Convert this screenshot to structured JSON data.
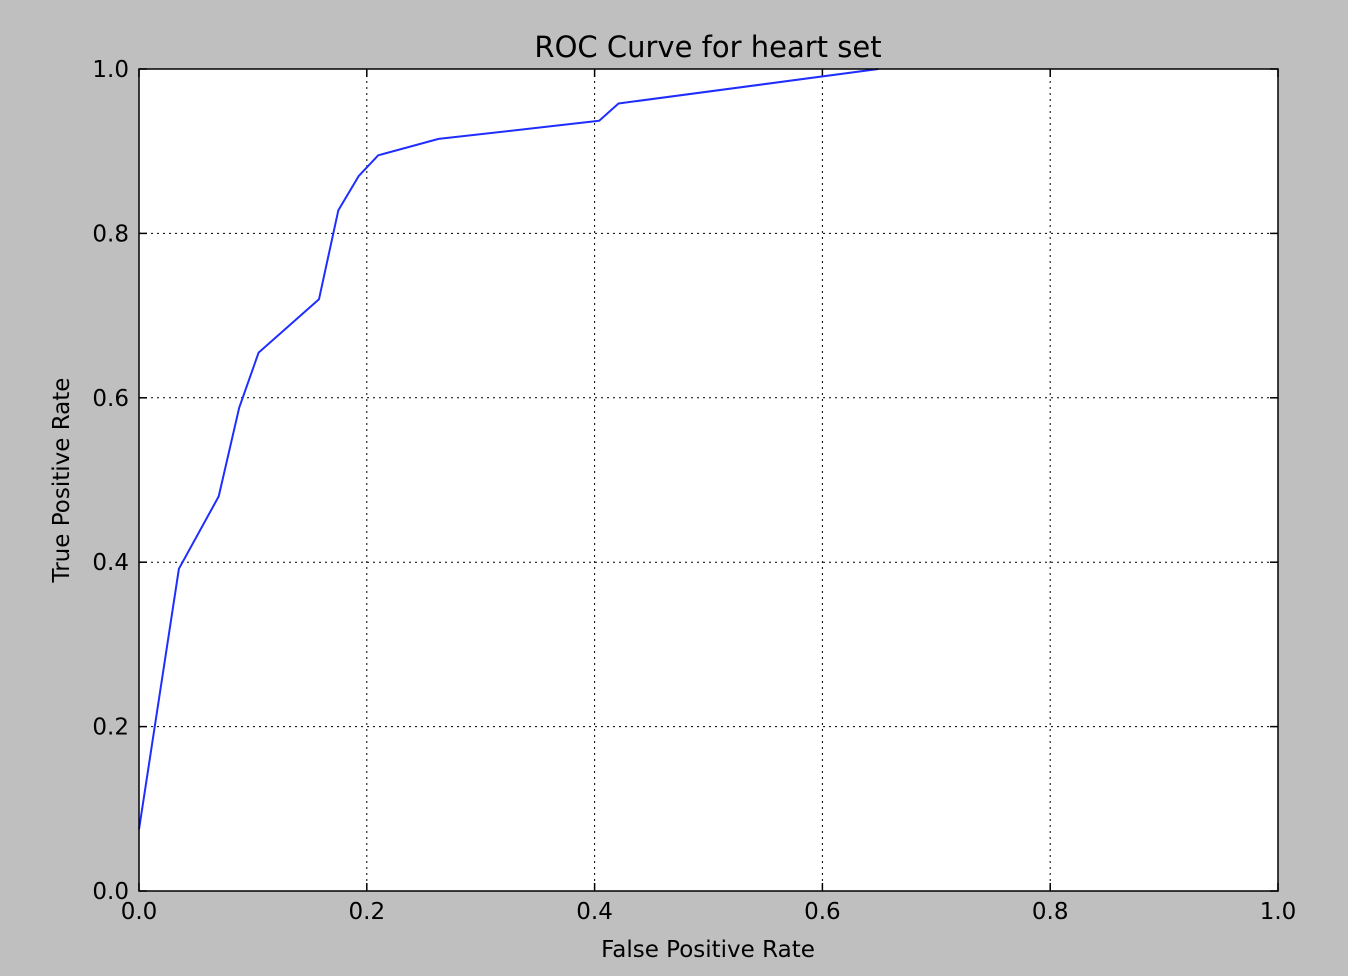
{
  "chart_data": {
    "type": "line",
    "title": "ROC Curve for heart set",
    "xlabel": "False Positive Rate",
    "ylabel": "True Positive Rate",
    "xlim": [
      0.0,
      1.0
    ],
    "ylim": [
      0.0,
      1.0
    ],
    "xticks": [
      "0.0",
      "0.2",
      "0.4",
      "0.6",
      "0.8",
      "1.0"
    ],
    "yticks": [
      "0.0",
      "0.2",
      "0.4",
      "0.6",
      "0.8",
      "1.0"
    ],
    "grid": true,
    "series": [
      {
        "color": "#1f2eff",
        "x": [
          0.0,
          0.035,
          0.07,
          0.088,
          0.105,
          0.158,
          0.175,
          0.193,
          0.21,
          0.263,
          0.404,
          0.421,
          0.649
        ],
        "y": [
          0.075,
          0.392,
          0.48,
          0.588,
          0.655,
          0.72,
          0.828,
          0.87,
          0.895,
          0.915,
          0.937,
          0.958,
          1.0
        ]
      }
    ]
  }
}
